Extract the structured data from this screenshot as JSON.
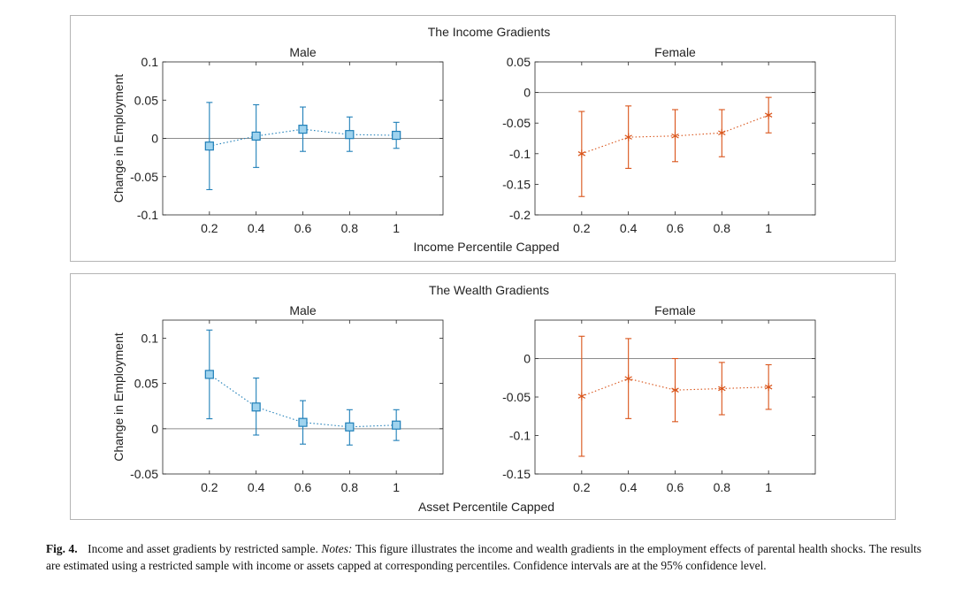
{
  "chart_data": [
    {
      "group_title": "The Income Gradients",
      "xlabel": "Income Percentile Capped",
      "panels": [
        {
          "type": "scatter",
          "title": "Male",
          "ylabel": "Change in Employment",
          "x": [
            0.2,
            0.4,
            0.6,
            0.8,
            1
          ],
          "x_ticks": [
            "0.2",
            "0.4",
            "0.6",
            "0.8",
            "1"
          ],
          "xlim": [
            0,
            1.2
          ],
          "ylim": [
            -0.1,
            0.1
          ],
          "y_ticks": [
            "0.1",
            "0.05",
            "0",
            "-0.05",
            "-0.1"
          ],
          "y_tick_values": [
            0.1,
            0.05,
            0,
            -0.05,
            -0.1
          ],
          "values": [
            -0.01,
            0.003,
            0.012,
            0.005,
            0.004
          ],
          "ci_upper": [
            0.047,
            0.044,
            0.041,
            0.028,
            0.021
          ],
          "ci_lower": [
            -0.067,
            -0.038,
            -0.017,
            -0.017,
            -0.013
          ],
          "marker": "square",
          "color": "#1f7fb8",
          "marker_fill": "#9fd3ee"
        },
        {
          "type": "scatter",
          "title": "Female",
          "ylabel": "",
          "x": [
            0.2,
            0.4,
            0.6,
            0.8,
            1
          ],
          "x_ticks": [
            "0.2",
            "0.4",
            "0.6",
            "0.8",
            "1"
          ],
          "xlim": [
            0,
            1.2
          ],
          "ylim": [
            -0.2,
            0.05
          ],
          "y_ticks": [
            "0.05",
            "0",
            "-0.05",
            "-0.1",
            "-0.15",
            "-0.2"
          ],
          "y_tick_values": [
            0.05,
            0,
            -0.05,
            -0.1,
            -0.15,
            -0.2
          ],
          "values": [
            -0.1,
            -0.073,
            -0.071,
            -0.066,
            -0.037
          ],
          "ci_upper": [
            -0.031,
            -0.022,
            -0.028,
            -0.028,
            -0.008
          ],
          "ci_lower": [
            -0.17,
            -0.124,
            -0.113,
            -0.105,
            -0.066
          ],
          "marker": "asterisk",
          "color": "#d9541a"
        }
      ]
    },
    {
      "group_title": "The Wealth Gradients",
      "xlabel": "Asset Percentile Capped",
      "panels": [
        {
          "type": "scatter",
          "title": "Male",
          "ylabel": "Change in Employment",
          "x": [
            0.2,
            0.4,
            0.6,
            0.8,
            1
          ],
          "x_ticks": [
            "0.2",
            "0.4",
            "0.6",
            "0.8",
            "1"
          ],
          "xlim": [
            0,
            1.2
          ],
          "ylim": [
            -0.05,
            0.12
          ],
          "y_ticks": [
            "0.1",
            "0.05",
            "0",
            "-0.05"
          ],
          "y_tick_values": [
            0.1,
            0.05,
            0,
            -0.05
          ],
          "values": [
            0.06,
            0.024,
            0.007,
            0.002,
            0.004
          ],
          "ci_upper": [
            0.109,
            0.056,
            0.031,
            0.021,
            0.021
          ],
          "ci_lower": [
            0.011,
            -0.007,
            -0.017,
            -0.018,
            -0.013
          ],
          "marker": "square",
          "color": "#1f7fb8",
          "marker_fill": "#9fd3ee"
        },
        {
          "type": "scatter",
          "title": "Female",
          "ylabel": "",
          "x": [
            0.2,
            0.4,
            0.6,
            0.8,
            1
          ],
          "x_ticks": [
            "0.2",
            "0.4",
            "0.6",
            "0.8",
            "1"
          ],
          "xlim": [
            0,
            1.2
          ],
          "ylim": [
            -0.15,
            0.05
          ],
          "y_ticks": [
            "0",
            "-0.05",
            "-0.1",
            "-0.15"
          ],
          "y_tick_values": [
            0,
            -0.05,
            -0.1,
            -0.15
          ],
          "values": [
            -0.049,
            -0.026,
            -0.041,
            -0.039,
            -0.037
          ],
          "ci_upper": [
            0.029,
            0.026,
            0,
            -0.005,
            -0.008
          ],
          "ci_lower": [
            -0.127,
            -0.078,
            -0.082,
            -0.073,
            -0.066
          ],
          "marker": "asterisk",
          "color": "#d9541a"
        }
      ]
    }
  ],
  "caption": {
    "label": "Fig. 4.",
    "text_before_notes": "Income and asset gradients by restricted sample.",
    "notes_label": "Notes:",
    "text_after_notes": "This figure illustrates the income and wealth gradients in the employment effects of parental health shocks. The results are estimated using a restricted sample with income or assets capped at corresponding percentiles. Confidence intervals are at the 95% confidence level."
  }
}
